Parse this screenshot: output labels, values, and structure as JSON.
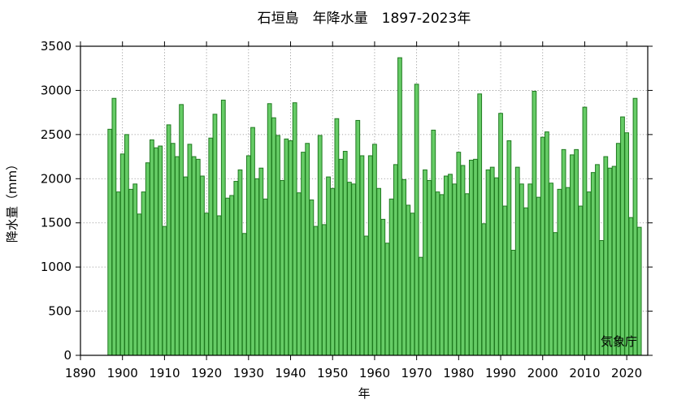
{
  "chart_data": {
    "type": "bar",
    "title": "石垣島　年降水量　1897-2023年",
    "xlabel": "年",
    "ylabel": "降水量（mm）",
    "credit": "気象庁",
    "xlim": [
      1890,
      2025
    ],
    "ylim": [
      0,
      3500
    ],
    "xticks": [
      1890,
      1900,
      1910,
      1920,
      1930,
      1940,
      1950,
      1960,
      1970,
      1980,
      1990,
      2000,
      2010,
      2020
    ],
    "yticks": [
      0,
      500,
      1000,
      1500,
      2000,
      2500,
      3000,
      3500
    ],
    "grid": true,
    "bar_color": "#66cc66",
    "bar_edge_color": "#1f7a1f",
    "x": [
      1897,
      1898,
      1899,
      1900,
      1901,
      1902,
      1903,
      1904,
      1905,
      1906,
      1907,
      1908,
      1909,
      1910,
      1911,
      1912,
      1913,
      1914,
      1915,
      1916,
      1917,
      1918,
      1919,
      1920,
      1921,
      1922,
      1923,
      1924,
      1925,
      1926,
      1927,
      1928,
      1929,
      1930,
      1931,
      1932,
      1933,
      1934,
      1935,
      1936,
      1937,
      1938,
      1939,
      1940,
      1941,
      1942,
      1943,
      1944,
      1945,
      1946,
      1947,
      1948,
      1949,
      1950,
      1951,
      1952,
      1953,
      1954,
      1955,
      1956,
      1957,
      1958,
      1959,
      1960,
      1961,
      1962,
      1963,
      1964,
      1965,
      1966,
      1967,
      1968,
      1969,
      1970,
      1971,
      1972,
      1973,
      1974,
      1975,
      1976,
      1977,
      1978,
      1979,
      1980,
      1981,
      1982,
      1983,
      1984,
      1985,
      1986,
      1987,
      1988,
      1989,
      1990,
      1991,
      1992,
      1993,
      1994,
      1995,
      1996,
      1997,
      1998,
      1999,
      2000,
      2001,
      2002,
      2003,
      2004,
      2005,
      2006,
      2007,
      2008,
      2009,
      2010,
      2011,
      2012,
      2013,
      2014,
      2015,
      2016,
      2017,
      2018,
      2019,
      2020,
      2021,
      2022,
      2023
    ],
    "values": [
      2560,
      2910,
      1850,
      2280,
      2500,
      1880,
      1940,
      1600,
      1850,
      2180,
      2440,
      2350,
      2370,
      1460,
      2610,
      2400,
      2250,
      2840,
      2020,
      2390,
      2250,
      2220,
      2030,
      1610,
      2460,
      2730,
      1580,
      2890,
      1780,
      1810,
      1970,
      2100,
      1380,
      2260,
      2580,
      2000,
      2120,
      1770,
      2850,
      2690,
      2490,
      1980,
      2450,
      2430,
      2860,
      1840,
      2300,
      2400,
      1760,
      1460,
      2490,
      1480,
      2020,
      1890,
      2680,
      2220,
      2310,
      1960,
      1940,
      2660,
      2260,
      1350,
      2260,
      2390,
      1890,
      1540,
      1270,
      1770,
      2160,
      3370,
      1990,
      1700,
      1610,
      3070,
      1110,
      2100,
      1980,
      2550,
      1850,
      1820,
      2030,
      2050,
      1940,
      2300,
      2150,
      1830,
      2210,
      2220,
      2960,
      1490,
      2100,
      2130,
      2010,
      2740,
      1690,
      2430,
      1190,
      2130,
      1940,
      1670,
      1940,
      2990,
      1790,
      2470,
      2530,
      1950,
      1390,
      1880,
      2330,
      1900,
      2270,
      2330,
      1690,
      2810,
      1850,
      2070,
      2160,
      1300,
      2250,
      2120,
      2140,
      2400,
      2700,
      2520,
      1560,
      2910,
      1450
    ]
  }
}
